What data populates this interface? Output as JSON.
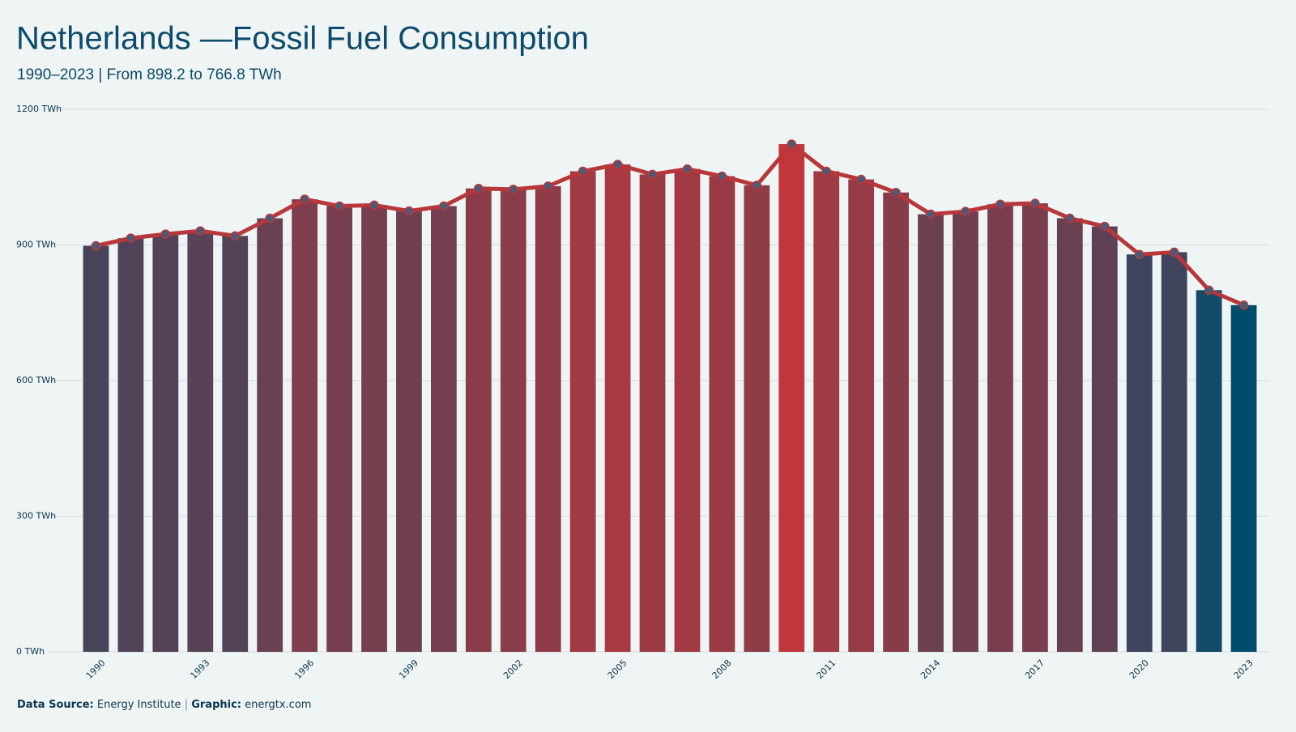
{
  "chart_data": {
    "type": "bar",
    "title": "Netherlands —Fossil Fuel Consumption",
    "subtitle": "1990–2023 | From 898.2 to 766.8 TWh",
    "categories": [
      "1990",
      null,
      null,
      "1993",
      null,
      null,
      "1996",
      null,
      null,
      "1999",
      null,
      null,
      "2002",
      null,
      null,
      "2005",
      null,
      null,
      "2008",
      null,
      null,
      "2011",
      null,
      null,
      "2014",
      null,
      null,
      "2017",
      null,
      null,
      "2020",
      null,
      null,
      "2023"
    ],
    "values": [
      898.2,
      915,
      924,
      931,
      920,
      959,
      1001,
      986,
      988,
      975,
      986,
      1025,
      1023,
      1030,
      1063,
      1078,
      1056,
      1068,
      1052,
      1032,
      1123,
      1063,
      1045,
      1016,
      968,
      974,
      990,
      992,
      959,
      941,
      879,
      884,
      800,
      766.8
    ],
    "colors": [
      "#004c6d",
      "#c0363a"
    ],
    "line_color": "#b8373b",
    "marker_color": "#4b5a76",
    "ylim": [
      0,
      1200
    ],
    "yticks": [
      {
        "value": 0,
        "label": "0 TWh"
      },
      {
        "value": 300,
        "label": "300 TWh"
      },
      {
        "value": 600,
        "label": "600 TWh"
      },
      {
        "value": 900,
        "label": "900 TWh"
      },
      {
        "value": 1200,
        "label": "1200 TWh"
      }
    ],
    "grid": true,
    "source": {
      "label1": "Data Source:",
      "text1": "Energy Institute",
      "sep": "|",
      "label2": "Graphic:",
      "text2": "energtx.com"
    }
  }
}
